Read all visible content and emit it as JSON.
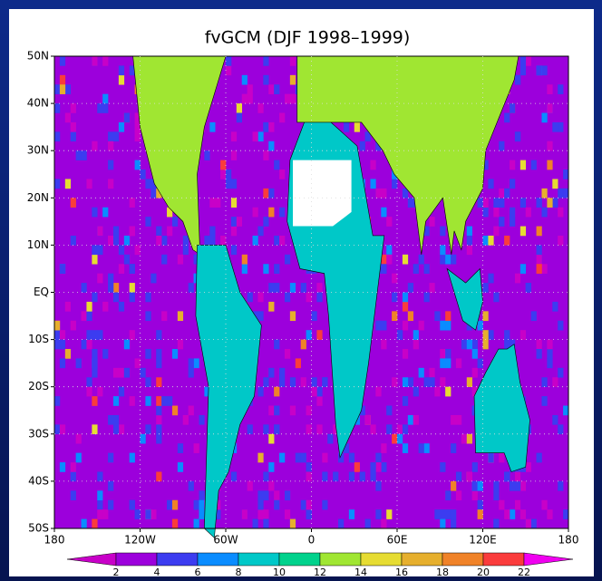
{
  "title": "fvGCM (DJF 1998–1999)",
  "lat_labels": [
    "50N",
    "40N",
    "30N",
    "20N",
    "10N",
    "EQ",
    "10S",
    "20S",
    "30S",
    "40S",
    "50S"
  ],
  "lon_labels": [
    "180",
    "120W",
    "60W",
    "0",
    "60E",
    "120E",
    "180"
  ],
  "colorbar": {
    "labels": [
      2,
      4,
      6,
      8,
      10,
      12,
      14,
      16,
      18,
      20,
      22
    ],
    "colors": [
      "#c800c8",
      "#9c00dc",
      "#3c3cf0",
      "#0a8cff",
      "#00c8c8",
      "#00d28c",
      "#a0e632",
      "#e6dc32",
      "#e6af2d",
      "#f08228",
      "#fa3c3c",
      "#f000f0"
    ]
  }
}
